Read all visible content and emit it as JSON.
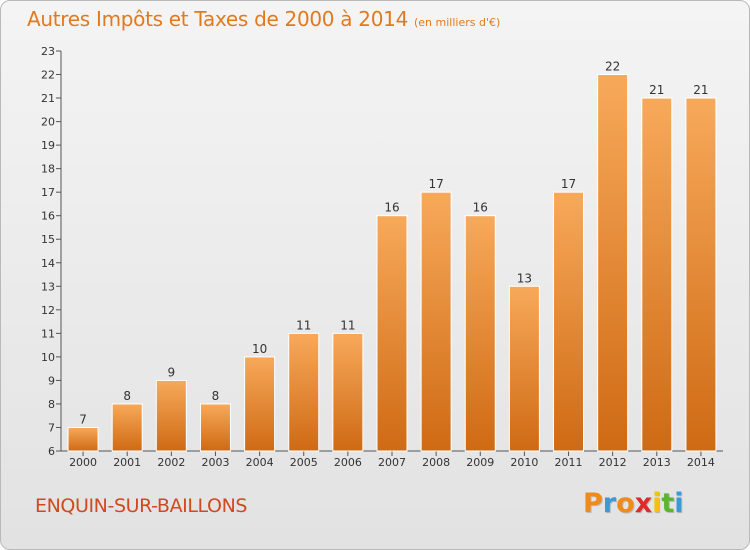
{
  "title": "Autres Impôts et Taxes de 2000 à 2014",
  "subtitle": "(en milliers d'€)",
  "commune": "ENQUIN-SUR-BAILLONS",
  "logo": {
    "letters": [
      "P",
      "r",
      "o",
      "x",
      "i",
      "t",
      "i"
    ],
    "colors": [
      "#f08a1a",
      "#3a9ad9",
      "#f08a1a",
      "#e02a2a",
      "#f4c20d",
      "#5cb52e",
      "#3a9ad9"
    ]
  },
  "colors": {
    "bar_light": "#f7a95a",
    "bar_dark": "#cf6a14",
    "accent": "#e07a20"
  },
  "chart_data": {
    "type": "bar",
    "categories": [
      "2000",
      "2001",
      "2002",
      "2003",
      "2004",
      "2005",
      "2006",
      "2007",
      "2008",
      "2009",
      "2010",
      "2011",
      "2012",
      "2013",
      "2014"
    ],
    "values": [
      7,
      8,
      9,
      8,
      10,
      11,
      11,
      16,
      17,
      16,
      13,
      17,
      22,
      21,
      21
    ],
    "ylim": [
      6,
      23
    ],
    "yticks": [
      6,
      7,
      8,
      9,
      10,
      11,
      12,
      13,
      14,
      15,
      16,
      17,
      18,
      19,
      20,
      21,
      22,
      23
    ],
    "grid": false,
    "data_labels": true
  }
}
